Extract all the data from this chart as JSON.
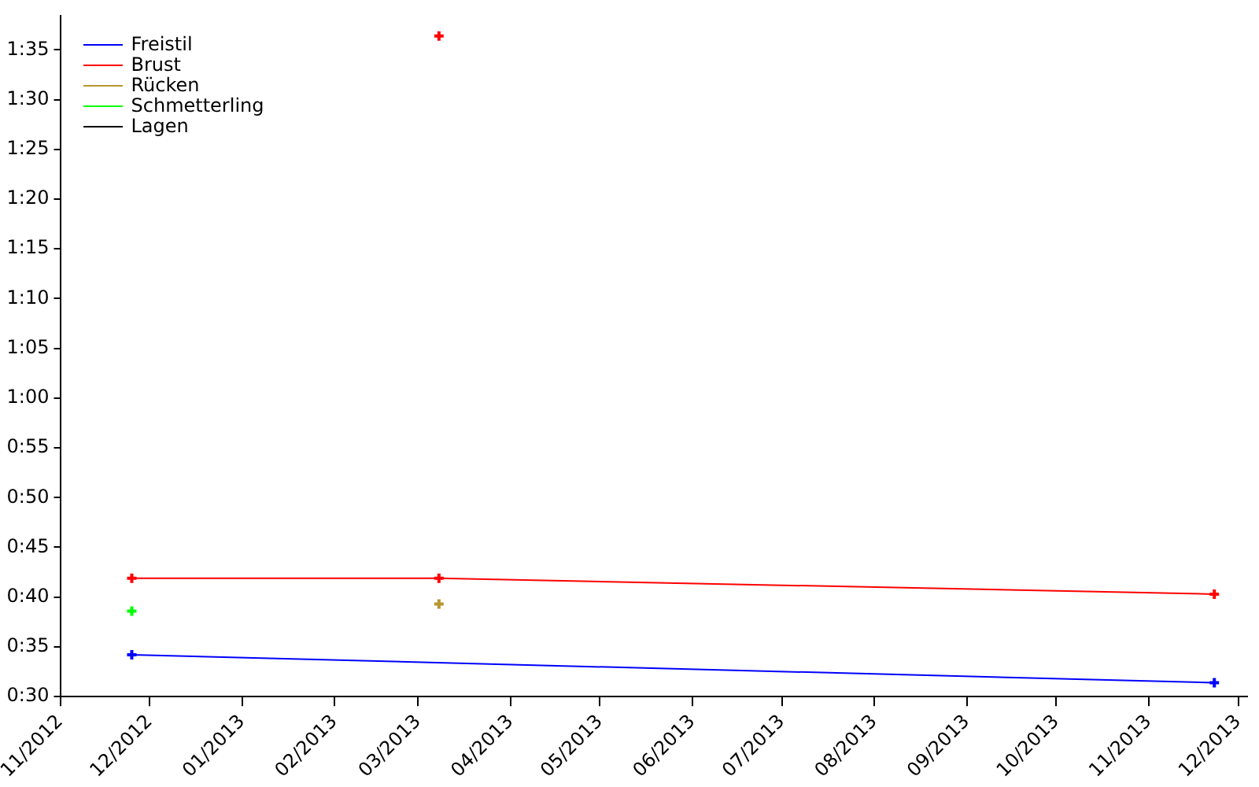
{
  "chart_data": {
    "type": "line",
    "xlim": [
      "2012-11",
      "2013-12-04"
    ],
    "xticks": [
      {
        "value": "2012-11",
        "label": "11/2012"
      },
      {
        "value": "2012-12",
        "label": "12/2012"
      },
      {
        "value": "2013-01",
        "label": "01/2013"
      },
      {
        "value": "2013-02",
        "label": "02/2013"
      },
      {
        "value": "2013-03",
        "label": "03/2013"
      },
      {
        "value": "2013-04",
        "label": "04/2013"
      },
      {
        "value": "2013-05",
        "label": "05/2013"
      },
      {
        "value": "2013-06",
        "label": "06/2013"
      },
      {
        "value": "2013-07",
        "label": "07/2013"
      },
      {
        "value": "2013-08",
        "label": "08/2013"
      },
      {
        "value": "2013-09",
        "label": "09/2013"
      },
      {
        "value": "2013-10",
        "label": "10/2013"
      },
      {
        "value": "2013-11",
        "label": "11/2013"
      },
      {
        "value": "2013-12",
        "label": "12/2013"
      }
    ],
    "ylim": [
      30,
      98.4
    ],
    "yticks": [
      {
        "value": 30,
        "label": "0:30"
      },
      {
        "value": 35,
        "label": "0:35"
      },
      {
        "value": 40,
        "label": "0:40"
      },
      {
        "value": 45,
        "label": "0:45"
      },
      {
        "value": 50,
        "label": "0:50"
      },
      {
        "value": 55,
        "label": "0:55"
      },
      {
        "value": 60,
        "label": "1:00"
      },
      {
        "value": 65,
        "label": "1:05"
      },
      {
        "value": 70,
        "label": "1:10"
      },
      {
        "value": 75,
        "label": "1:15"
      },
      {
        "value": 80,
        "label": "1:20"
      },
      {
        "value": 85,
        "label": "1:25"
      },
      {
        "value": 90,
        "label": "1:30"
      },
      {
        "value": 95,
        "label": "1:35"
      }
    ],
    "grid": false,
    "legend": "top left",
    "marker": "cross",
    "series": [
      {
        "name": "Freistil",
        "type": "line",
        "color": "#0000ff",
        "x": [
          "2012-11-25",
          "2013-11-23"
        ],
        "values": [
          34.2,
          31.4
        ]
      },
      {
        "name": "Brust",
        "type": "line",
        "color": "#ff0000",
        "x": [
          "2012-11-25",
          "2013-03-08",
          "2013-11-23"
        ],
        "values": [
          41.9,
          41.9,
          40.3
        ]
      },
      {
        "name": "Rücken",
        "type": "scatter",
        "color": "#b8962e",
        "x": [
          "2013-03-08"
        ],
        "values": [
          39.3
        ]
      },
      {
        "name": "Schmetterling",
        "type": "scatter",
        "color": "#00ff00",
        "x": [
          "2012-11-25"
        ],
        "values": [
          38.6
        ]
      },
      {
        "name": "Lagen",
        "type": "line",
        "color": "#000000"
      },
      {
        "type": "scatter",
        "color": "#ff0000",
        "x": [
          "2013-03-08"
        ],
        "values": [
          96.4
        ]
      }
    ]
  }
}
